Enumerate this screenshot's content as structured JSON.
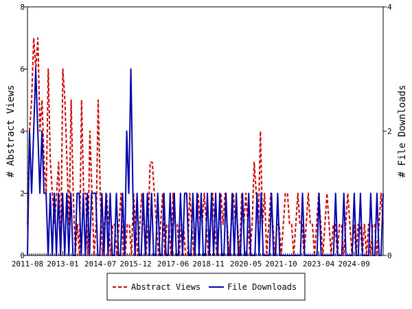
{
  "chart_data": {
    "type": "line",
    "x_start": "2011-08",
    "x_end": "2025-11",
    "x_tick_labels": [
      "2011-08",
      "2013-01",
      "2014-07",
      "2015-12",
      "2017-06",
      "2018-11",
      "2020-05",
      "2021-10",
      "2023-04",
      "2024-09"
    ],
    "ylabel_left": "# Abstract Views",
    "ylabel_right": "# File Downloads",
    "ylim_left": [
      0,
      8
    ],
    "ylim_right": [
      0,
      4
    ],
    "yticks_left": [
      "0",
      "2",
      "4",
      "6",
      "8"
    ],
    "yticks_right": [
      "0",
      "2",
      "4"
    ],
    "legend_placement": "bottom-center",
    "series": [
      {
        "name": "Abstract Views",
        "axis": "left",
        "color": "#cc0000",
        "dash": "dashed",
        "values": [
          1,
          4,
          5,
          7,
          6,
          7,
          4,
          5,
          3,
          2,
          6,
          3,
          2,
          1,
          2,
          3,
          0,
          6,
          5,
          3,
          1,
          5,
          2,
          0,
          1,
          0,
          5,
          2,
          2,
          0,
          4,
          2,
          0,
          1,
          5,
          2,
          0,
          1,
          2,
          1,
          0,
          1,
          1,
          0,
          1,
          2,
          0,
          0,
          1,
          1,
          0,
          2,
          1,
          0,
          1,
          2,
          1,
          0,
          1,
          3,
          3,
          2,
          1,
          0,
          1,
          2,
          0,
          1,
          1,
          0,
          2,
          1,
          1,
          0,
          1,
          1,
          0,
          0,
          2,
          1,
          0,
          1,
          2,
          1,
          1,
          2,
          1,
          0,
          1,
          2,
          1,
          0,
          1,
          2,
          1,
          2,
          1,
          0,
          1,
          2,
          1,
          1,
          0,
          2,
          1,
          2,
          1,
          0,
          1,
          3,
          2,
          1,
          4,
          1,
          2,
          0,
          1,
          2,
          1,
          0,
          1,
          1,
          0,
          1,
          2,
          2,
          1,
          1,
          0,
          1,
          2,
          1,
          1,
          0,
          1,
          2,
          1,
          1,
          0,
          1,
          2,
          1,
          0,
          1,
          2,
          1,
          0,
          1,
          1,
          0,
          1,
          1,
          0,
          1,
          2,
          1,
          0,
          1,
          0,
          1,
          1,
          0,
          1,
          0,
          1,
          0,
          1,
          1,
          0,
          1,
          2,
          1
        ]
      },
      {
        "name": "File Downloads",
        "axis": "right",
        "color": "#0000aa",
        "dash": "solid",
        "values": [
          0,
          2,
          1,
          2,
          3,
          2,
          1,
          2,
          1,
          1,
          0,
          1,
          0,
          1,
          0,
          1,
          0,
          1,
          0,
          1,
          0,
          1,
          0,
          0,
          1,
          1,
          0,
          1,
          0,
          1,
          0,
          1,
          1,
          1,
          0,
          0,
          1,
          0,
          1,
          0,
          1,
          0,
          0,
          1,
          0,
          0,
          1,
          0,
          2,
          1,
          3,
          1,
          0,
          1,
          0,
          0,
          1,
          0,
          1,
          0,
          1,
          0,
          0,
          1,
          0,
          0,
          1,
          0,
          0,
          1,
          0,
          1,
          0,
          0,
          1,
          0,
          1,
          1,
          0,
          0,
          1,
          0,
          1,
          0,
          1,
          0,
          0,
          1,
          0,
          1,
          0,
          1,
          0,
          1,
          0,
          0,
          1,
          0,
          0,
          1,
          0,
          1,
          0,
          0,
          1,
          0,
          0,
          1,
          0,
          0,
          0,
          1,
          0,
          1,
          0,
          0,
          0,
          0,
          1,
          0,
          0,
          1,
          0,
          0,
          0,
          0,
          0,
          0,
          0,
          0,
          0,
          0,
          0,
          1,
          0,
          0,
          0,
          0,
          0,
          0,
          0,
          1,
          0,
          0,
          0,
          0,
          0,
          0,
          0,
          1,
          0,
          0,
          0,
          1,
          0,
          0,
          0,
          0,
          1,
          0,
          0,
          1,
          0,
          0,
          0,
          0,
          1,
          0,
          0,
          1,
          0,
          0,
          1
        ]
      }
    ]
  },
  "legend": {
    "item1": "Abstract Views",
    "item2": "File Downloads"
  }
}
